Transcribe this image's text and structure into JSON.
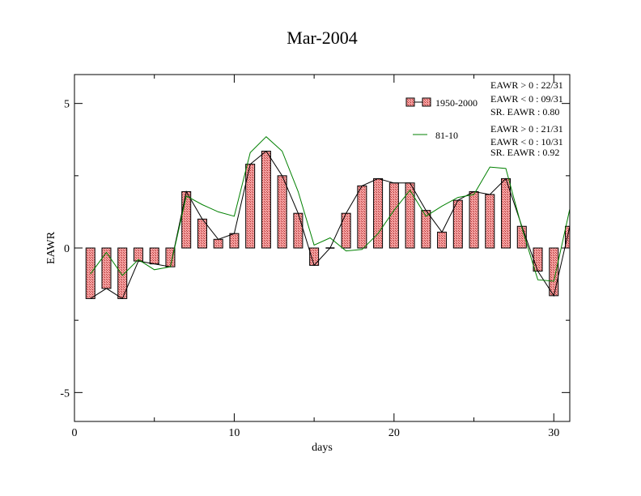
{
  "chart_data": {
    "type": "bar",
    "title": "Mar-2004",
    "xlabel": "days",
    "ylabel": "EAWR",
    "xlim": [
      0,
      31
    ],
    "ylim": [
      -6,
      6
    ],
    "x_ticks": [
      0,
      10,
      20,
      30
    ],
    "y_ticks": [
      5,
      0,
      -5
    ],
    "x_tick_labels": [
      "0",
      "10",
      "20",
      "30"
    ],
    "y_tick_labels": [
      "5",
      "0",
      "-5"
    ],
    "grid": false,
    "legend_position": "top-right",
    "days": [
      1,
      2,
      3,
      4,
      5,
      6,
      7,
      8,
      9,
      10,
      11,
      12,
      13,
      14,
      15,
      16,
      17,
      18,
      19,
      20,
      21,
      22,
      23,
      24,
      25,
      26,
      27,
      28,
      29,
      30,
      31
    ],
    "series": [
      {
        "name": "1950-2000",
        "kind": "bar+line",
        "color": "#e87070",
        "values": [
          -1.75,
          -1.4,
          -1.75,
          -0.45,
          -0.55,
          -0.65,
          1.95,
          1.0,
          0.3,
          0.5,
          2.9,
          3.35,
          2.5,
          1.2,
          -0.6,
          0.0,
          1.2,
          2.15,
          2.4,
          2.25,
          2.25,
          1.3,
          0.55,
          1.65,
          1.95,
          1.85,
          2.4,
          0.75,
          -0.8,
          -1.65,
          0.75
        ],
        "stats": [
          "EAWR > 0 : 22/31",
          "EAWR < 0 : 09/31",
          "SR. EAWR :  0.80"
        ]
      },
      {
        "name": "81-10",
        "kind": "line",
        "color": "#008000",
        "values": [
          -0.9,
          -0.15,
          -0.95,
          -0.4,
          -0.75,
          -0.65,
          1.8,
          1.5,
          1.25,
          1.1,
          3.3,
          3.85,
          3.35,
          1.95,
          0.1,
          0.35,
          -0.1,
          -0.05,
          0.5,
          1.3,
          2.0,
          1.1,
          1.45,
          1.75,
          1.85,
          2.8,
          2.75,
          0.7,
          -1.1,
          -1.15,
          1.35
        ],
        "stats": [
          "EAWR > 0 : 21/31",
          "EAWR < 0 : 10/31",
          "SR. EAWR :  0.92"
        ]
      }
    ]
  }
}
